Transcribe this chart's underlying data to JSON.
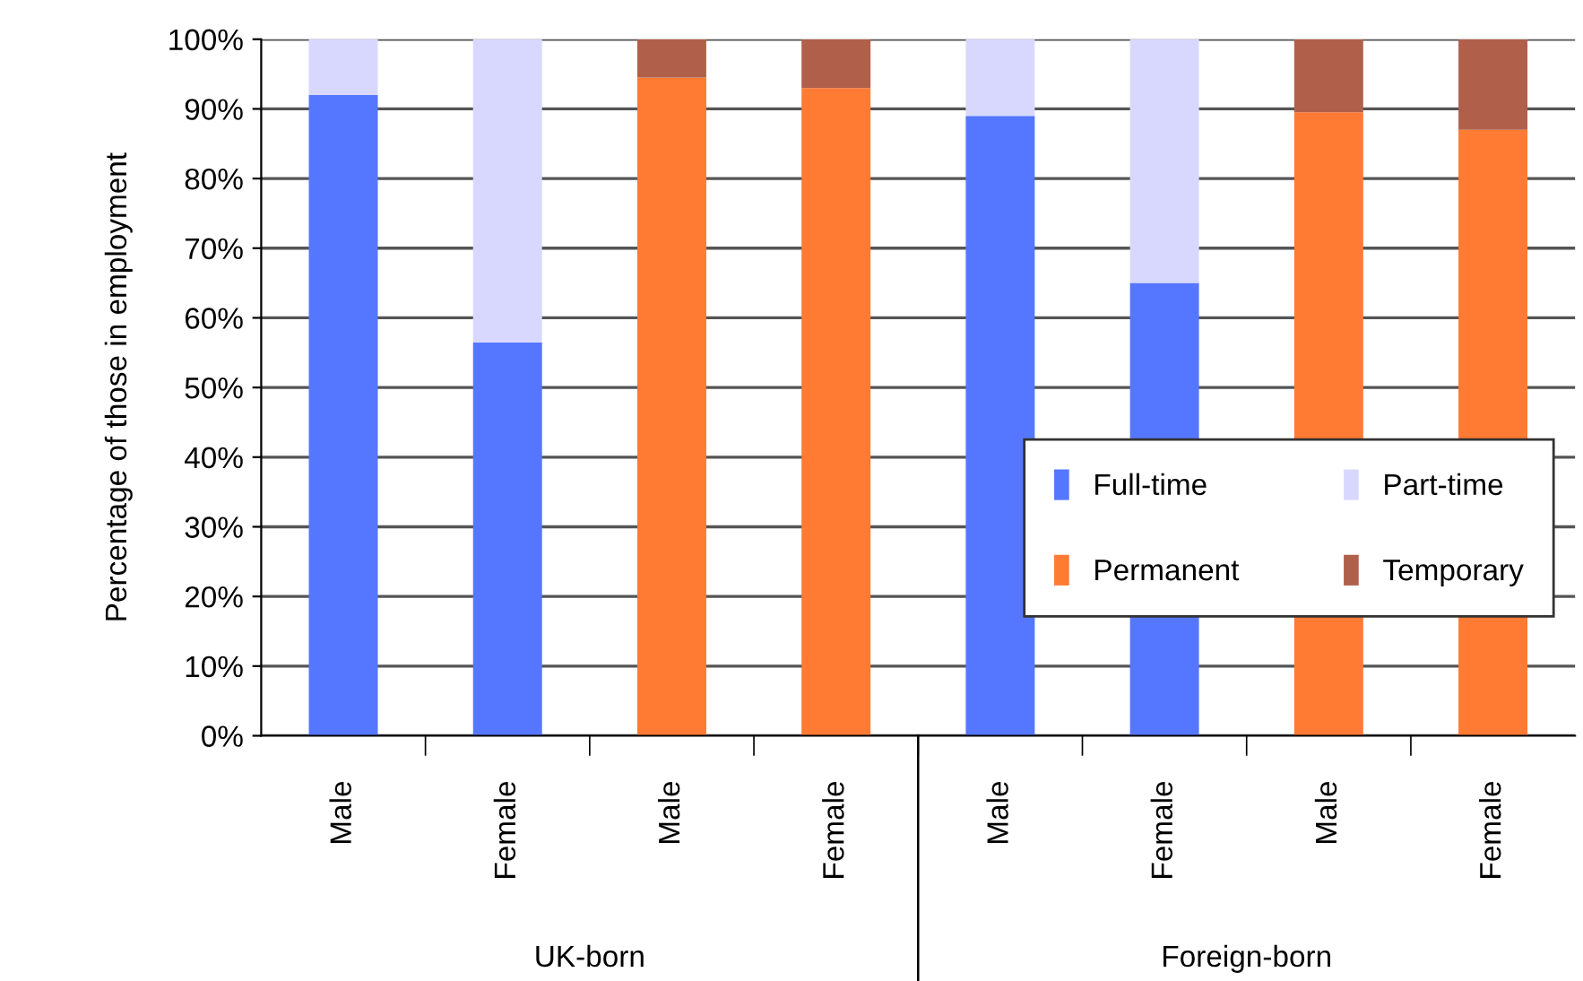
{
  "chart_data": {
    "type": "bar",
    "stacked": true,
    "ylabel": "Percentage of those in employment",
    "categories": [
      "Male",
      "Female",
      "Male",
      "Female",
      "Male",
      "Female",
      "Male",
      "Female"
    ],
    "series": [
      {
        "name": "Full-time",
        "color": "#5577ff",
        "values": [
          92,
          56.5,
          null,
          null,
          89,
          65,
          null,
          null
        ]
      },
      {
        "name": "Part-time",
        "color": "#d8d8ff",
        "values": [
          8,
          43.5,
          null,
          null,
          11,
          35,
          null,
          null
        ]
      },
      {
        "name": "Permanent",
        "color": "#ff7a33",
        "values": [
          null,
          null,
          94.5,
          93,
          null,
          null,
          89.5,
          87
        ]
      },
      {
        "name": "Temporary",
        "color": "#b0604a",
        "values": [
          null,
          null,
          5.5,
          7,
          null,
          null,
          10.5,
          13
        ]
      }
    ],
    "annotations": [
      "UK-born",
      "Foreign-born"
    ],
    "ylim": [
      0,
      100
    ],
    "yticks": [
      {
        "value": 0,
        "label": "0%"
      },
      {
        "value": 10,
        "label": "10%"
      },
      {
        "value": 20,
        "label": "20%"
      },
      {
        "value": 30,
        "label": "30%"
      },
      {
        "value": 40,
        "label": "40%"
      },
      {
        "value": 50,
        "label": "50%"
      },
      {
        "value": 60,
        "label": "60%"
      },
      {
        "value": 70,
        "label": "70%"
      },
      {
        "value": 80,
        "label": "80%"
      },
      {
        "value": 90,
        "label": "90%"
      },
      {
        "value": 100,
        "label": "100%"
      }
    ],
    "grid": "y",
    "legend": "bottom right"
  }
}
